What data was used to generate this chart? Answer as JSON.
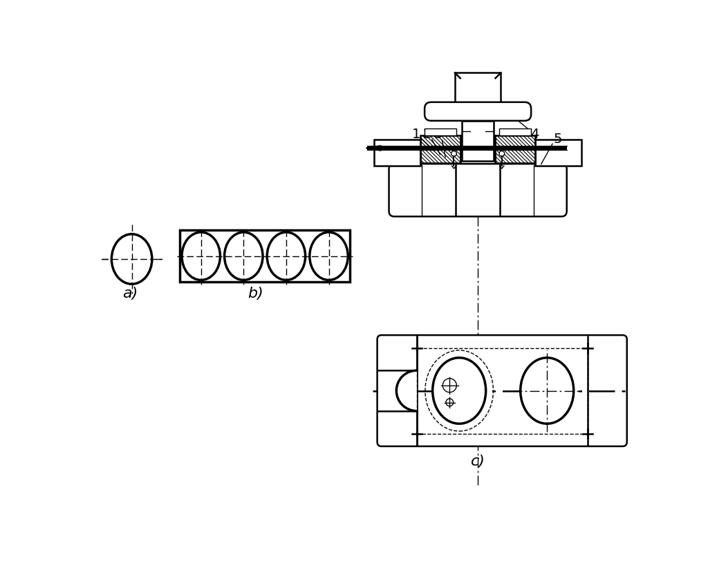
{
  "bg_color": "#ffffff",
  "lc": "#000000",
  "label_a": "a)",
  "label_b": "b)",
  "label_c": "c)",
  "fig_w": 1024,
  "fig_h": 815
}
